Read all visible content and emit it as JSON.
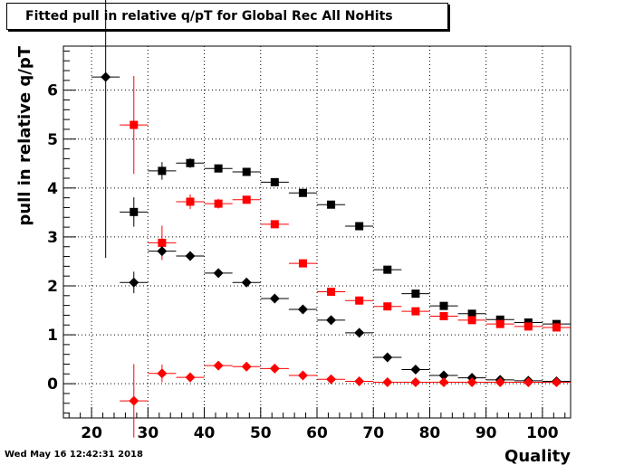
{
  "header": {
    "title": "Fitted pull in relative q/pT for Global Rec All NoHits"
  },
  "footer": {
    "timestamp": "Wed May 16 12:42:31 2018"
  },
  "chart_data": {
    "type": "scatter",
    "title": "Fitted pull in relative q/pT for Global Rec All NoHits",
    "xlabel": "Quality",
    "ylabel": "pull in relative q/pT",
    "xlim": [
      15,
      105
    ],
    "ylim": [
      -0.7,
      6.9
    ],
    "xticks": [
      20,
      30,
      40,
      50,
      60,
      70,
      80,
      90,
      100
    ],
    "yticks": [
      0,
      1,
      2,
      3,
      4,
      5,
      6
    ],
    "grid": true,
    "series": [
      {
        "color": "#000000",
        "marker": "square",
        "x": [
          27.5,
          32.5,
          37.5,
          42.5,
          47.5,
          52.5,
          57.5,
          62.5,
          67.5,
          72.5,
          77.5,
          82.5,
          87.5,
          92.5,
          97.5,
          102.5
        ],
        "y": [
          3.51,
          4.35,
          4.51,
          4.4,
          4.33,
          4.12,
          3.9,
          3.66,
          3.22,
          2.33,
          1.84,
          1.59,
          1.43,
          1.31,
          1.25,
          1.22
        ],
        "yerr": [
          0.3,
          0.18,
          0.1,
          0.06,
          0.04,
          0.04,
          0.04,
          0.04,
          0.04,
          0.04,
          0.04,
          0.04,
          0.04,
          0.04,
          0.04,
          0.04
        ]
      },
      {
        "color": "#ff0000",
        "marker": "square",
        "x": [
          27.5,
          32.5,
          37.5,
          42.5,
          47.5,
          52.5,
          57.5,
          62.5,
          67.5,
          72.5,
          77.5,
          82.5,
          87.5,
          92.5,
          97.5,
          102.5
        ],
        "y": [
          5.29,
          2.88,
          3.72,
          3.68,
          3.76,
          3.26,
          2.46,
          1.88,
          1.7,
          1.58,
          1.48,
          1.38,
          1.3,
          1.22,
          1.17,
          1.15
        ],
        "yerr": [
          1.0,
          0.35,
          0.15,
          0.1,
          0.06,
          0.05,
          0.04,
          0.04,
          0.04,
          0.04,
          0.04,
          0.04,
          0.04,
          0.04,
          0.04,
          0.04
        ]
      },
      {
        "color": "#000000",
        "marker": "diamond",
        "x": [
          22.5,
          27.5,
          32.5,
          37.5,
          42.5,
          47.5,
          52.5,
          57.5,
          62.5,
          67.5,
          72.5,
          77.5,
          82.5,
          87.5,
          92.5,
          97.5,
          102.5
        ],
        "y": [
          6.27,
          2.07,
          2.71,
          2.61,
          2.26,
          2.07,
          1.74,
          1.52,
          1.3,
          1.04,
          0.54,
          0.29,
          0.17,
          0.12,
          0.08,
          0.06,
          0.05
        ],
        "yerr": [
          3.7,
          0.22,
          0.1,
          0.08,
          0.05,
          0.04,
          0.03,
          0.03,
          0.03,
          0.03,
          0.03,
          0.03,
          0.03,
          0.03,
          0.03,
          0.03,
          0.03
        ]
      },
      {
        "color": "#ff0000",
        "marker": "diamond",
        "x": [
          27.5,
          32.5,
          37.5,
          42.5,
          47.5,
          52.5,
          57.5,
          62.5,
          67.5,
          72.5,
          77.5,
          82.5,
          87.5,
          92.5,
          97.5,
          102.5
        ],
        "y": [
          -0.35,
          0.21,
          0.13,
          0.37,
          0.35,
          0.31,
          0.17,
          0.09,
          0.05,
          0.03,
          0.03,
          0.03,
          0.03,
          0.03,
          0.03,
          0.03
        ],
        "yerr": [
          0.75,
          0.18,
          0.1,
          0.05,
          0.04,
          0.04,
          0.03,
          0.03,
          0.03,
          0.03,
          0.03,
          0.03,
          0.03,
          0.03,
          0.03,
          0.03
        ]
      }
    ]
  }
}
